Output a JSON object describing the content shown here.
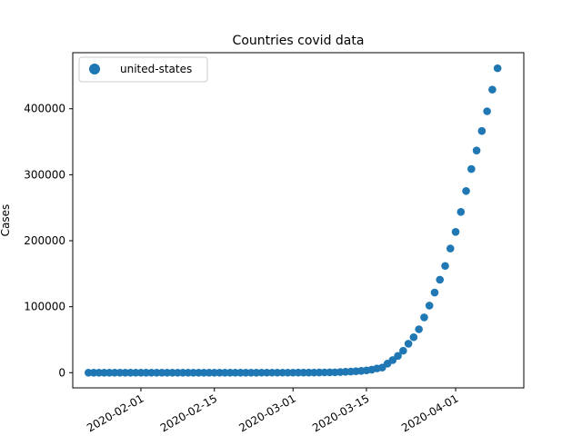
{
  "chart_data": {
    "type": "scatter",
    "title": "Countries covid data",
    "xlabel": "",
    "ylabel": "Cases",
    "x_type": "date",
    "xlim": [
      "2020-01-19",
      "2020-04-14"
    ],
    "ylim": [
      -23000,
      485000
    ],
    "x_ticks": [
      "2020-02-01",
      "2020-02-15",
      "2020-03-01",
      "2020-03-15",
      "2020-04-01"
    ],
    "y_ticks": [
      0,
      100000,
      200000,
      300000,
      400000
    ],
    "grid": false,
    "legend": {
      "position": "upper-left"
    },
    "series": [
      {
        "name": "united-states",
        "color": "#1f77b4",
        "marker": "circle",
        "x": [
          "2020-01-22",
          "2020-01-23",
          "2020-01-24",
          "2020-01-25",
          "2020-01-26",
          "2020-01-27",
          "2020-01-28",
          "2020-01-29",
          "2020-01-30",
          "2020-01-31",
          "2020-02-01",
          "2020-02-02",
          "2020-02-03",
          "2020-02-04",
          "2020-02-05",
          "2020-02-06",
          "2020-02-07",
          "2020-02-08",
          "2020-02-09",
          "2020-02-10",
          "2020-02-11",
          "2020-02-12",
          "2020-02-13",
          "2020-02-14",
          "2020-02-15",
          "2020-02-16",
          "2020-02-17",
          "2020-02-18",
          "2020-02-19",
          "2020-02-20",
          "2020-02-21",
          "2020-02-22",
          "2020-02-23",
          "2020-02-24",
          "2020-02-25",
          "2020-02-26",
          "2020-02-27",
          "2020-02-28",
          "2020-02-29",
          "2020-03-01",
          "2020-03-02",
          "2020-03-03",
          "2020-03-04",
          "2020-03-05",
          "2020-03-06",
          "2020-03-07",
          "2020-03-08",
          "2020-03-09",
          "2020-03-10",
          "2020-03-11",
          "2020-03-12",
          "2020-03-13",
          "2020-03-14",
          "2020-03-15",
          "2020-03-16",
          "2020-03-17",
          "2020-03-18",
          "2020-03-19",
          "2020-03-20",
          "2020-03-21",
          "2020-03-22",
          "2020-03-23",
          "2020-03-24",
          "2020-03-25",
          "2020-03-26",
          "2020-03-27",
          "2020-03-28",
          "2020-03-29",
          "2020-03-30",
          "2020-03-31",
          "2020-04-01",
          "2020-04-02",
          "2020-04-03",
          "2020-04-04",
          "2020-04-05",
          "2020-04-06",
          "2020-04-07",
          "2020-04-08",
          "2020-04-09"
        ],
        "y": [
          1,
          1,
          2,
          2,
          5,
          5,
          5,
          5,
          5,
          7,
          8,
          8,
          11,
          11,
          11,
          11,
          11,
          11,
          11,
          11,
          12,
          12,
          13,
          13,
          13,
          13,
          13,
          13,
          13,
          13,
          15,
          15,
          15,
          51,
          51,
          57,
          58,
          60,
          68,
          74,
          98,
          118,
          149,
          217,
          262,
          402,
          518,
          583,
          959,
          1281,
          1663,
          2179,
          2727,
          3499,
          4632,
          6421,
          7786,
          13680,
          19101,
          25493,
          33276,
          43847,
          53740,
          65778,
          83836,
          101657,
          121465,
          140909,
          161831,
          188172,
          213372,
          243622,
          275367,
          308650,
          336802,
          366317,
          396223,
          429052,
          461437
        ]
      }
    ]
  }
}
